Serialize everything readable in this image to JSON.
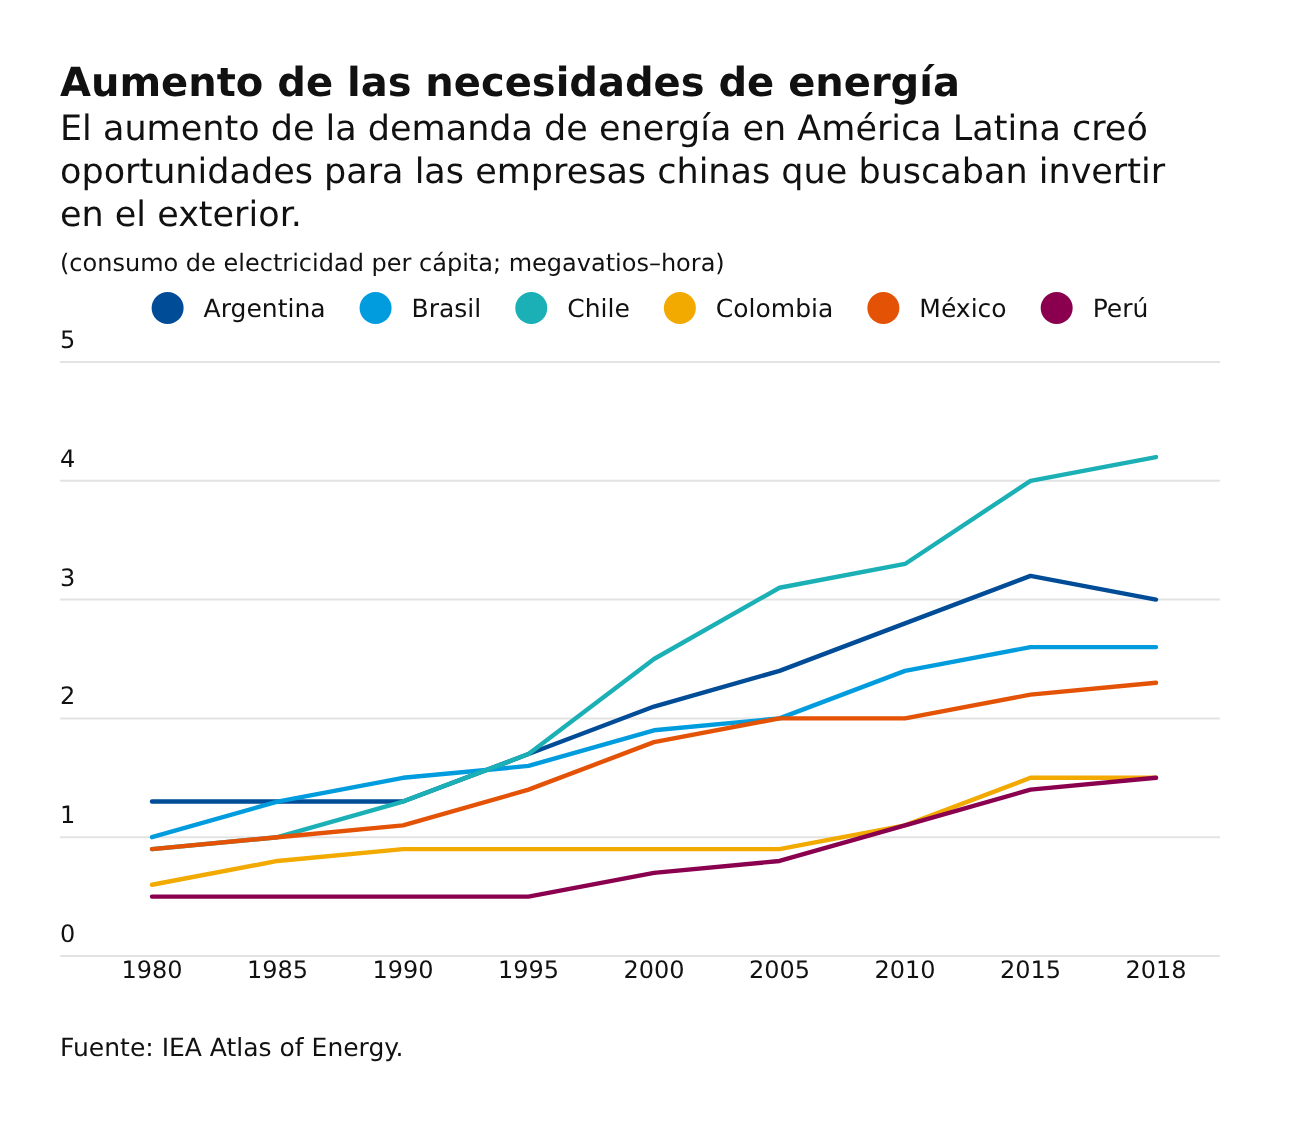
{
  "chart_data": {
    "type": "line",
    "title": "Aumento de las necesidades de energía",
    "subtitle": "El aumento de la demanda de energía en América Latina creó oportunidades para las empresas chinas que buscaban invertir en el exterior.",
    "ylabel": "(consumo de electricidad per cápita; megavatios–hora)",
    "annotations": [
      "Fuente: IEA Atlas of Energy."
    ],
    "categories": [
      "1980",
      "1985",
      "1990",
      "1995",
      "2000",
      "2005",
      "2010",
      "2015",
      "2018"
    ],
    "series": [
      {
        "name": "Argentina",
        "color": "#004c97",
        "values": [
          1.3,
          1.3,
          1.3,
          1.7,
          2.1,
          2.4,
          2.8,
          3.2,
          3.0
        ]
      },
      {
        "name": "Brasil",
        "color": "#009cde",
        "values": [
          1.0,
          1.3,
          1.5,
          1.6,
          1.9,
          2.0,
          2.4,
          2.6,
          2.6
        ]
      },
      {
        "name": "Chile",
        "color": "#1ab0b5",
        "values": [
          0.9,
          1.0,
          1.3,
          1.7,
          2.5,
          3.1,
          3.3,
          4.0,
          4.2
        ]
      },
      {
        "name": "Colombia",
        "color": "#f2a900",
        "values": [
          0.6,
          0.8,
          0.9,
          0.9,
          0.9,
          0.9,
          1.1,
          1.5,
          1.5
        ]
      },
      {
        "name": "México",
        "color": "#e35205",
        "values": [
          0.9,
          1.0,
          1.1,
          1.4,
          1.8,
          2.0,
          2.0,
          2.2,
          2.3
        ]
      },
      {
        "name": "Perú",
        "color": "#8a004f",
        "values": [
          0.5,
          0.5,
          0.5,
          0.5,
          0.7,
          0.8,
          1.1,
          1.4,
          1.5
        ]
      }
    ],
    "ylim": [
      0,
      5
    ],
    "yticks": [
      0,
      1,
      2,
      3,
      4,
      5
    ],
    "grid": "y",
    "legend": "top",
    "marker": "none",
    "line_style": "solid"
  }
}
